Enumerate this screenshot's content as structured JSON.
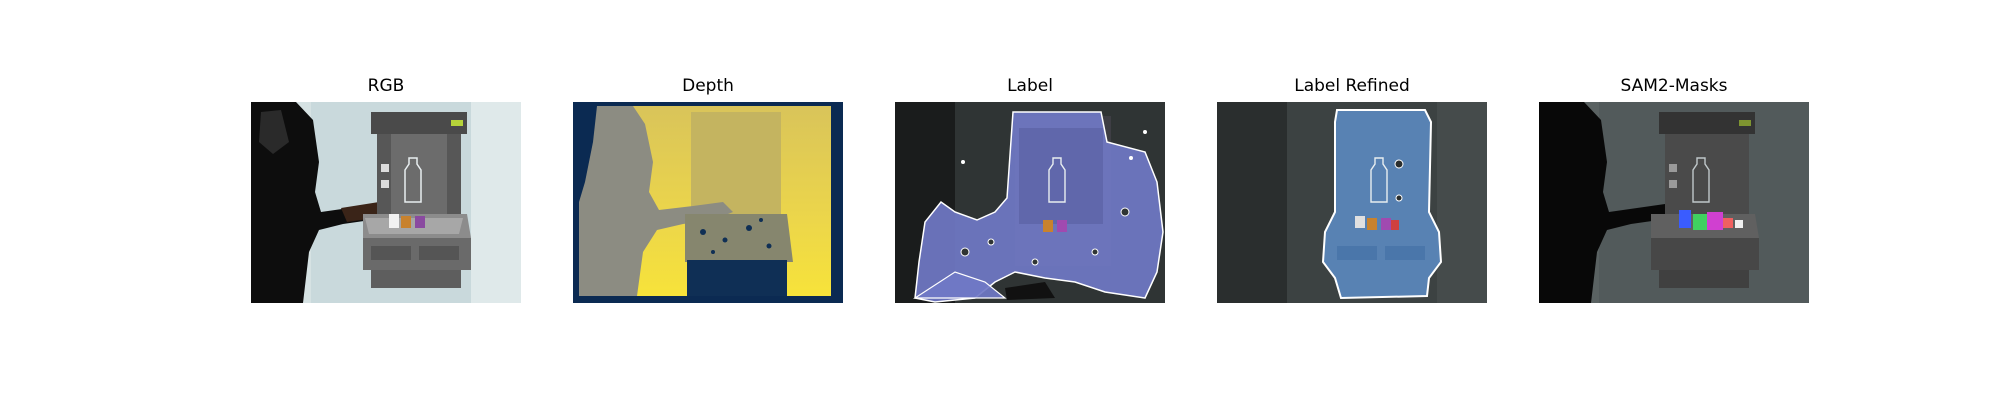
{
  "figure": {
    "panels": [
      {
        "title": "RGB",
        "icon": "rgb-frame-image"
      },
      {
        "title": "Depth",
        "icon": "depth-map-image"
      },
      {
        "title": "Label",
        "icon": "label-overlay-image"
      },
      {
        "title": "Label Refined",
        "icon": "refined-label-overlay-image"
      },
      {
        "title": "SAM2-Masks",
        "icon": "sam2-masks-overlay-image"
      }
    ]
  }
}
